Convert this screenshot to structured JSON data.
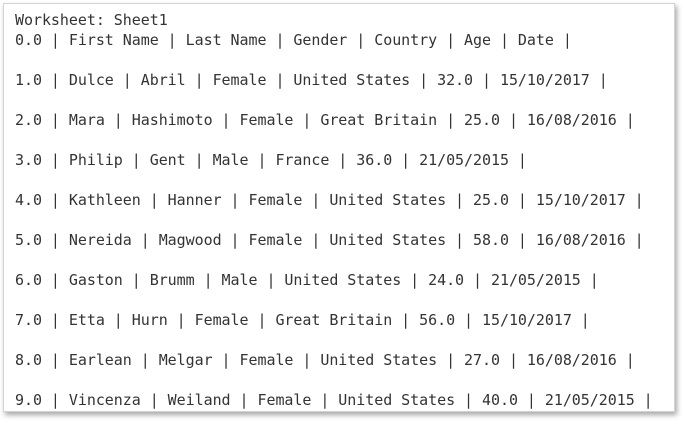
{
  "worksheet_label": "Worksheet: Sheet1",
  "rows": [
    "0.0 | First Name | Last Name | Gender | Country | Age | Date |",
    "1.0 | Dulce | Abril | Female | United States | 32.0 | 15/10/2017 |",
    "2.0 | Mara | Hashimoto | Female | Great Britain | 25.0 | 16/08/2016 |",
    "3.0 | Philip | Gent | Male | France | 36.0 | 21/05/2015 |",
    "4.0 | Kathleen | Hanner | Female | United States | 25.0 | 15/10/2017 |",
    "5.0 | Nereida | Magwood | Female | United States | 58.0 | 16/08/2016 |",
    "6.0 | Gaston | Brumm | Male | United States | 24.0 | 21/05/2015 |",
    "7.0 | Etta | Hurn | Female | Great Britain | 56.0 | 15/10/2017 |",
    "8.0 | Earlean | Melgar | Female | United States | 27.0 | 16/08/2016 |",
    "9.0 | Vincenza | Weiland | Female | United States | 40.0 | 21/05/2015 |"
  ]
}
